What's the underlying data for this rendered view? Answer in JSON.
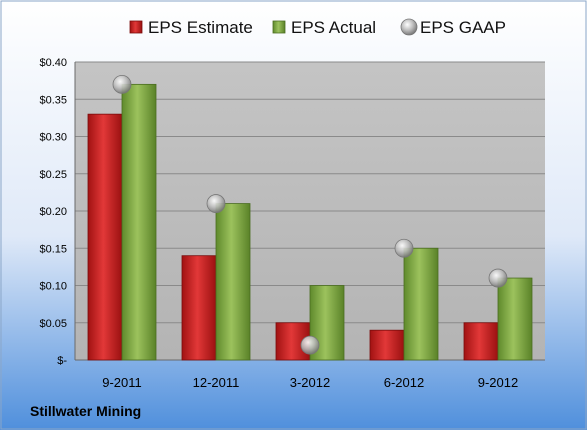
{
  "chart_data": {
    "type": "bar",
    "categories": [
      "9-2011",
      "12-2011",
      "3-2012",
      "6-2012",
      "9-2012"
    ],
    "series": [
      {
        "name": "EPS Estimate",
        "kind": "bar",
        "color": "#cc1f1f",
        "values": [
          0.33,
          0.14,
          0.05,
          0.04,
          0.05
        ]
      },
      {
        "name": "EPS Actual",
        "kind": "bar",
        "color": "#7fa845",
        "values": [
          0.37,
          0.21,
          0.1,
          0.15,
          0.11
        ]
      },
      {
        "name": "EPS GAAP",
        "kind": "marker",
        "color": "#b8b8b8",
        "values": [
          0.37,
          0.21,
          0.02,
          0.15,
          0.11
        ]
      }
    ],
    "ylim": [
      0,
      0.4
    ],
    "yticks": [
      0,
      0.05,
      0.1,
      0.15,
      0.2,
      0.25,
      0.3,
      0.35,
      0.4
    ],
    "ytick_labels": [
      "$-",
      "$0.05",
      "$0.10",
      "$0.15",
      "$0.20",
      "$0.25",
      "$0.30",
      "$0.35",
      "$0.40"
    ],
    "grid": true,
    "legend_position": "top",
    "source_label": "Stillwater Mining",
    "colors": {
      "plot_bg": "#c0c0c0",
      "bg_top": "#ffffff",
      "bg_bottom": "#4f8fdc"
    }
  }
}
